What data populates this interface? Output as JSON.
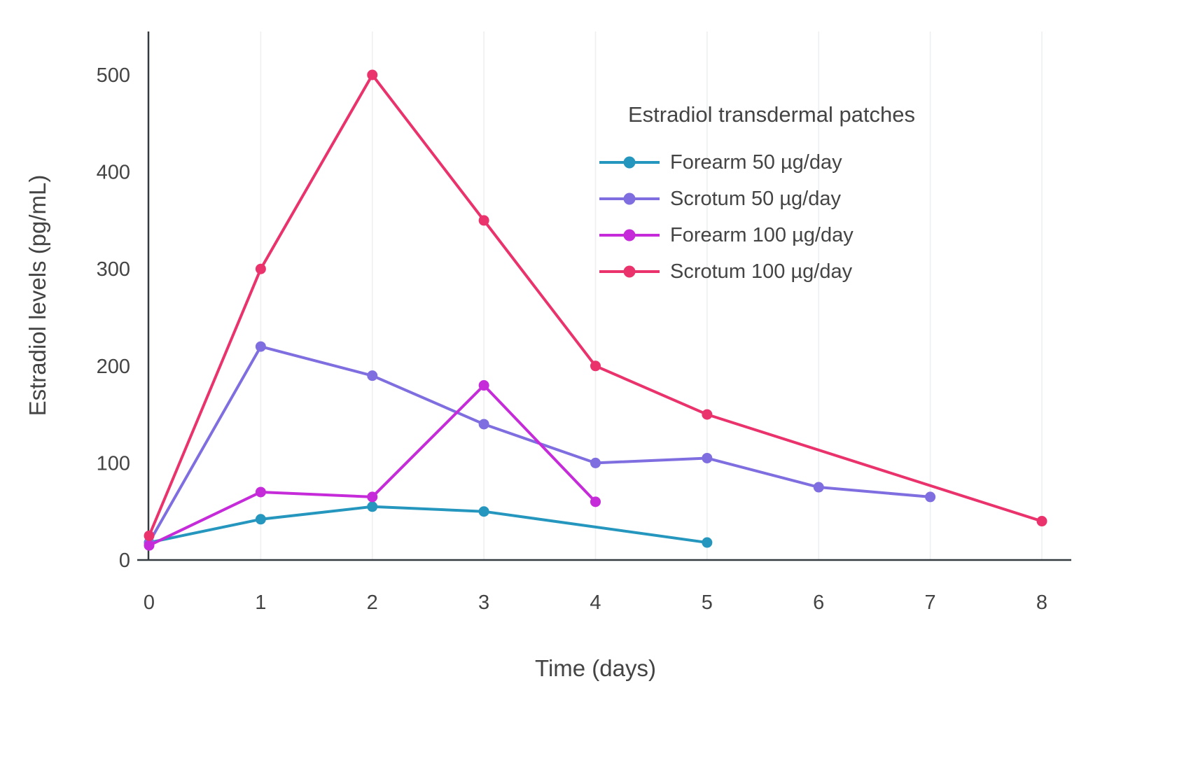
{
  "chart_data": {
    "type": "line",
    "legend_title": "Estradiol transdermal patches",
    "xlabel": "Time (days)",
    "ylabel": "Estradiol levels (pg/mL)",
    "x_ticks": [
      0,
      1,
      2,
      3,
      4,
      5,
      6,
      7,
      8
    ],
    "y_ticks": [
      0,
      100,
      200,
      300,
      400,
      500
    ],
    "xlim": [
      0,
      8.3
    ],
    "ylim": [
      0,
      545
    ],
    "grid": "faint vertical gridlines at each day",
    "legend_position": "inside top-right",
    "series": [
      {
        "name": "Forearm 50 µg/day",
        "color": "#2596be",
        "x": [
          0,
          1,
          2,
          3,
          5
        ],
        "y": [
          18,
          42,
          55,
          50,
          18
        ]
      },
      {
        "name": "Scrotum 50 µg/day",
        "color": "#7f6ee0",
        "x": [
          0,
          1,
          2,
          3,
          4,
          5,
          6,
          7
        ],
        "y": [
          18,
          220,
          190,
          140,
          100,
          105,
          75,
          65
        ]
      },
      {
        "name": "Forearm 100 µg/day",
        "color": "#c52bd9",
        "x": [
          0,
          1,
          2,
          3,
          4
        ],
        "y": [
          15,
          70,
          65,
          180,
          60
        ]
      },
      {
        "name": "Scrotum 100 µg/day",
        "color": "#ea336d",
        "x": [
          0,
          1,
          2,
          3,
          4,
          5,
          8
        ],
        "y": [
          25,
          300,
          500,
          350,
          200,
          150,
          40
        ]
      }
    ]
  }
}
